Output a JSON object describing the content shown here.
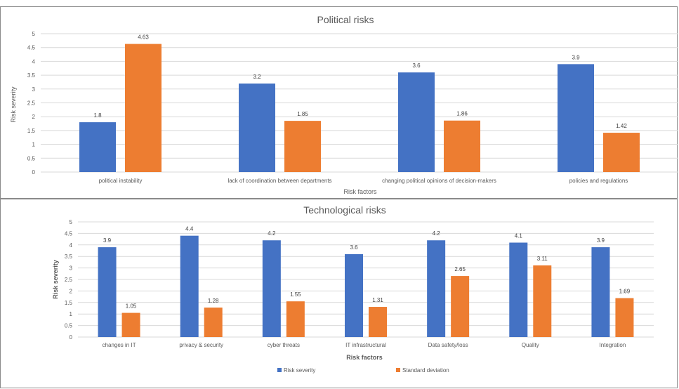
{
  "colors": {
    "risk_severity": "#4472C4",
    "standard_deviation": "#ED7D31",
    "grid": "#D9D9D9",
    "text": "#595959"
  },
  "chart_data": [
    {
      "type": "bar",
      "title": "Political risks",
      "xlabel": "Risk factors",
      "ylabel": "Risk severity",
      "ylim": [
        0,
        5
      ],
      "yticks": [
        "0",
        "0.5",
        "1",
        "1.5",
        "2",
        "2.5",
        "3",
        "3.5",
        "4",
        "4.5",
        "5"
      ],
      "grid": true,
      "categories": [
        "political instability",
        "lack of coordination between departments",
        "changing political opinions of decision-makers",
        "policies and regulations"
      ],
      "series": [
        {
          "values": [
            1.8,
            3.2,
            3.6,
            3.9
          ],
          "labels": [
            "1.8",
            "3.2",
            "3.6",
            "3.9"
          ]
        },
        {
          "values": [
            4.63,
            1.85,
            1.86,
            1.42
          ],
          "labels": [
            "4.63",
            "1.85",
            "1.86",
            "1.42"
          ]
        }
      ]
    },
    {
      "type": "bar",
      "title": "Technological risks",
      "xlabel": "Risk factors",
      "ylabel": "Risk severity",
      "ylim": [
        0,
        5
      ],
      "yticks": [
        "0",
        "0.5",
        "1",
        "1.5",
        "2",
        "2.5",
        "3",
        "3.5",
        "4",
        "4.5",
        "5"
      ],
      "grid": true,
      "legend_position": "bottom",
      "categories": [
        "changes in IT",
        "privacy & security",
        "cyber threats",
        "IT infrastructural",
        "Data safety/loss",
        "Quality",
        "Integration"
      ],
      "series": [
        {
          "name": "Risk severity",
          "values": [
            3.9,
            4.4,
            4.2,
            3.6,
            4.2,
            4.1,
            3.9
          ],
          "labels": [
            "3.9",
            "4.4",
            "4.2",
            "3.6",
            "4.2",
            "4.1",
            "3.9"
          ]
        },
        {
          "name": "Standard deviation",
          "values": [
            1.05,
            1.28,
            1.55,
            1.31,
            2.65,
            3.11,
            1.69
          ],
          "labels": [
            "1.05",
            "1.28",
            "1.55",
            "1.31",
            "2.65",
            "3.11",
            "1.69"
          ]
        }
      ]
    }
  ]
}
